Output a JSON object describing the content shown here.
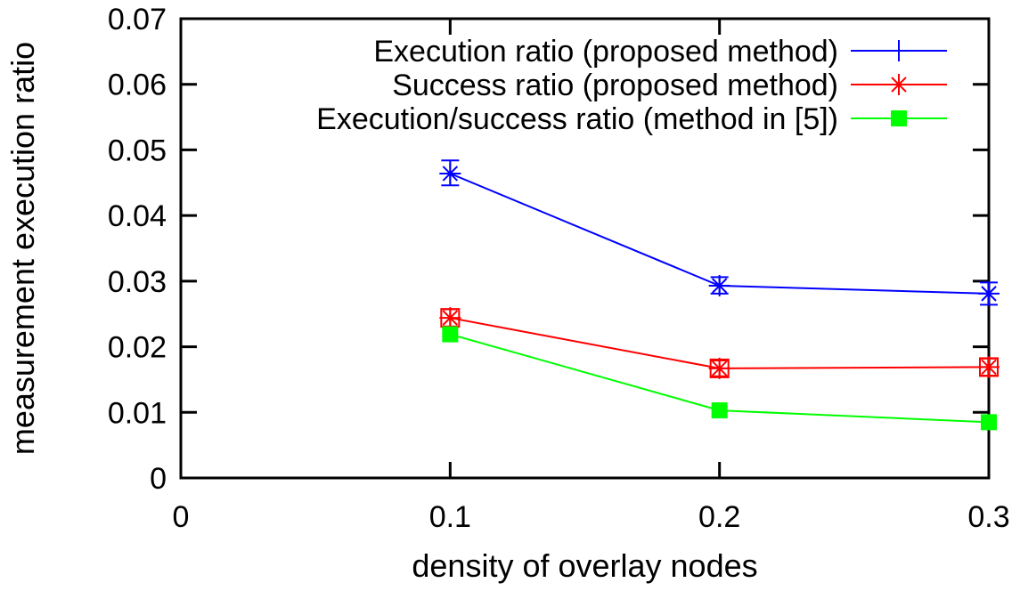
{
  "chart_data": {
    "type": "line",
    "title": "",
    "xlabel": "density of overlay nodes",
    "ylabel": "measurement execution ratio",
    "xlim": [
      0,
      0.3
    ],
    "ylim": [
      0,
      0.07
    ],
    "xticks": [
      0,
      0.1,
      0.2,
      0.3
    ],
    "xtick_labels": [
      "0",
      "0.1",
      "0.2",
      "0.3"
    ],
    "yticks": [
      0,
      0.01,
      0.02,
      0.03,
      0.04,
      0.05,
      0.06,
      0.07
    ],
    "ytick_labels": [
      "0",
      "0.01",
      "0.02",
      "0.03",
      "0.04",
      "0.05",
      "0.06",
      "0.07"
    ],
    "grid": false,
    "legend_position": "top-right-inside",
    "frame_color": "#000000",
    "background_color": "#ffffff",
    "series": [
      {
        "name": "Execution ratio (proposed method)",
        "color": "#0000ff",
        "point_marker": "star",
        "legend_marker": "plus",
        "error_bars": true,
        "x": [
          0.1,
          0.2,
          0.3
        ],
        "y": [
          0.0464,
          0.0293,
          0.0281
        ],
        "y_err_low": [
          0.0446,
          0.0281,
          0.0264
        ],
        "y_err_high": [
          0.0484,
          0.0306,
          0.0298
        ]
      },
      {
        "name": "Success ratio (proposed method)",
        "color": "#ff0000",
        "point_marker": "boxed-asterisk",
        "legend_marker": "asterisk",
        "error_bars": true,
        "x": [
          0.1,
          0.2,
          0.3
        ],
        "y": [
          0.0244,
          0.0167,
          0.0169
        ],
        "y_err_low": [
          0.0231,
          0.0155,
          0.0156
        ],
        "y_err_high": [
          0.0257,
          0.0179,
          0.0182
        ]
      },
      {
        "name": "Execution/success ratio (method in [5])",
        "color": "#00ff00",
        "point_marker": "filled-square",
        "legend_marker": "filled-square",
        "error_bars": false,
        "x": [
          0.1,
          0.2,
          0.3
        ],
        "y": [
          0.0219,
          0.0103,
          0.0085
        ],
        "y_err_low": null,
        "y_err_high": null
      }
    ]
  }
}
